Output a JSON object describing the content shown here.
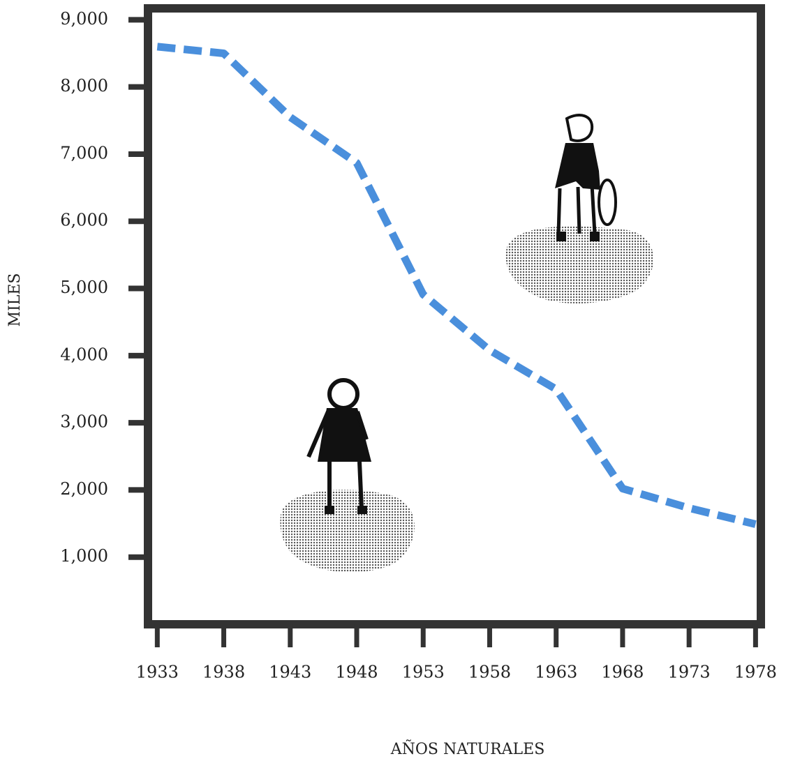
{
  "chart_data": {
    "type": "line",
    "y_label": "MILES",
    "x_label": "AÑOS NATURALES",
    "x": [
      1933,
      1938,
      1943,
      1948,
      1953,
      1958,
      1963,
      1968,
      1973,
      1978
    ],
    "series": [
      {
        "color": "#4a8fdc",
        "values": [
          8600,
          8500,
          7550,
          6870,
          4910,
          4080,
          3500,
          2020,
          1730,
          1490
        ]
      }
    ],
    "xlim": [
      1932.3,
      1978.4
    ],
    "ylim": [
      0,
      9170
    ],
    "xticks": [
      1933,
      1938,
      1943,
      1948,
      1953,
      1958,
      1963,
      1968,
      1973,
      1978
    ],
    "yticks": [
      {
        "value": 1000,
        "label": "1,000"
      },
      {
        "value": 2000,
        "label": "2,000"
      },
      {
        "value": 3000,
        "label": "3,000"
      },
      {
        "value": 4000,
        "label": "4,000"
      },
      {
        "value": 5000,
        "label": "5,000"
      },
      {
        "value": 6000,
        "label": "6,000"
      },
      {
        "value": 7000,
        "label": "7,000"
      },
      {
        "value": 8000,
        "label": "8,000"
      },
      {
        "value": 9000,
        "label": "9,000"
      }
    ]
  }
}
